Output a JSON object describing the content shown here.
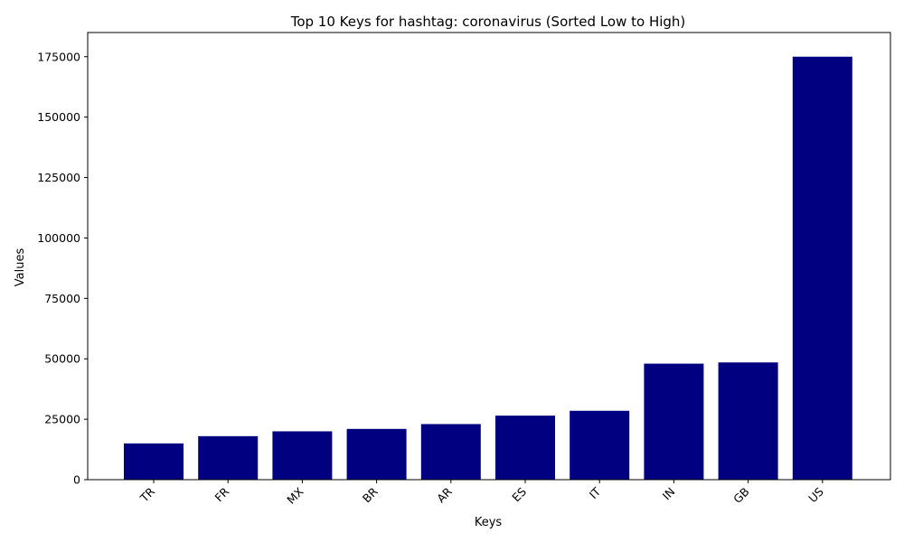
{
  "chart_data": {
    "type": "bar",
    "title": "Top 10 Keys for hashtag: coronavirus (Sorted Low to High)",
    "xlabel": "Keys",
    "ylabel": "Values",
    "categories": [
      "TR",
      "FR",
      "MX",
      "BR",
      "AR",
      "ES",
      "IT",
      "IN",
      "GB",
      "US"
    ],
    "values": [
      15000,
      18000,
      20000,
      21000,
      23000,
      26500,
      28500,
      48000,
      48500,
      175000
    ],
    "ylim": [
      0,
      185000
    ],
    "yticks": [
      0,
      25000,
      50000,
      75000,
      100000,
      125000,
      150000,
      175000
    ],
    "bar_color": "#000080",
    "grid": false,
    "legend": "none"
  }
}
